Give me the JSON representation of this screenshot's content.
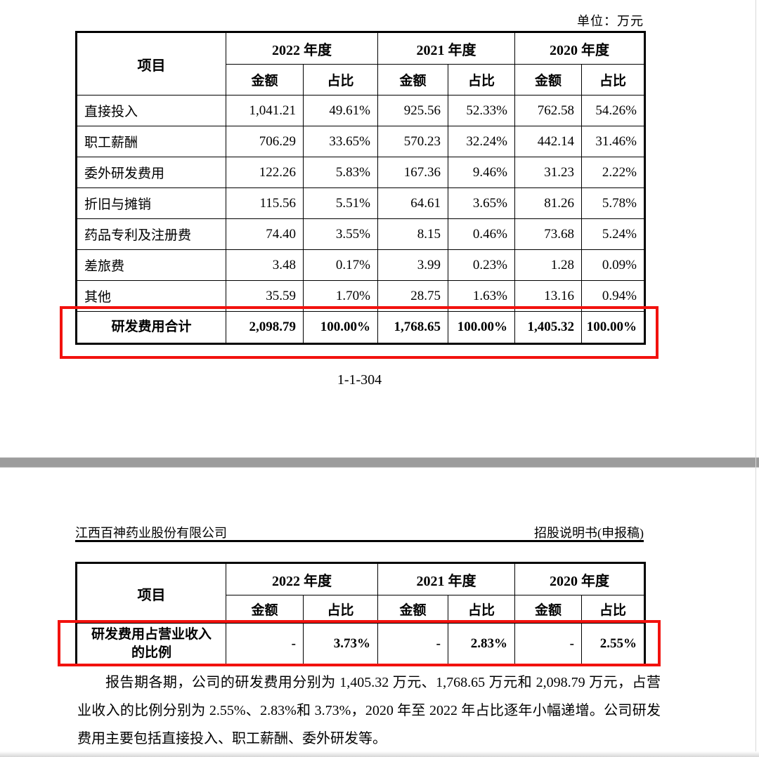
{
  "page1": {
    "unit_label": "单位：万元",
    "page_number": "1-1-304"
  },
  "table_header": {
    "item": "项目",
    "year_groups": [
      "2022 年度",
      "2021 年度",
      "2020 年度"
    ],
    "amount": "金额",
    "ratio": "占比"
  },
  "table1": {
    "rows": [
      {
        "type": "data",
        "cells": [
          "直接投入",
          "1,041.21",
          "49.61%",
          "925.56",
          "52.33%",
          "762.58",
          "54.26%"
        ]
      },
      {
        "type": "data",
        "cells": [
          "职工薪酬",
          "706.29",
          "33.65%",
          "570.23",
          "32.24%",
          "442.14",
          "31.46%"
        ]
      },
      {
        "type": "data",
        "cells": [
          "委外研发费用",
          "122.26",
          "5.83%",
          "167.36",
          "9.46%",
          "31.23",
          "2.22%"
        ]
      },
      {
        "type": "data",
        "cells": [
          "折旧与摊销",
          "115.56",
          "5.51%",
          "64.61",
          "3.65%",
          "81.26",
          "5.78%"
        ]
      },
      {
        "type": "data",
        "cells": [
          "药品专利及注册费",
          "74.40",
          "3.55%",
          "8.15",
          "0.46%",
          "73.68",
          "5.24%"
        ]
      },
      {
        "type": "data",
        "cells": [
          "差旅费",
          "3.48",
          "0.17%",
          "3.99",
          "0.23%",
          "1.28",
          "0.09%"
        ]
      },
      {
        "type": "data",
        "cells": [
          "其他",
          "35.59",
          "1.70%",
          "28.75",
          "1.63%",
          "13.16",
          "0.94%"
        ]
      },
      {
        "type": "total",
        "cells": [
          "研发费用合计",
          "2,098.79",
          "100.00%",
          "1,768.65",
          "100.00%",
          "1,405.32",
          "100.00%"
        ]
      }
    ]
  },
  "page2": {
    "header_left": "江西百神药业股份有限公司",
    "header_right": "招股说明书(申报稿)",
    "table2": {
      "rows": [
        {
          "type": "total",
          "cells": [
            "研发费用占营业收入\n的比例",
            "-",
            "3.73%",
            "-",
            "2.83%",
            "-",
            "2.55%"
          ]
        }
      ]
    },
    "paragraph": "报告期各期，公司的研发费用分别为 1,405.32 万元、1,768.65 万元和 2,098.79 万元，占营业收入的比例分别为 2.55%、2.83%和 3.73%，2020 年至 2022 年占比逐年小幅递增。公司研发费用主要包括直接投入、职工薪酬、委外研发等。"
  },
  "colors": {
    "highlight_red": "#f2120e",
    "separator_gray": "#9c9c9c"
  }
}
